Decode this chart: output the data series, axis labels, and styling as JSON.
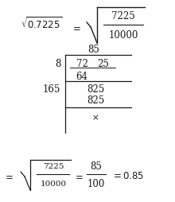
{
  "bg_color": "#ffffff",
  "fig_width": 2.2,
  "fig_height": 2.55,
  "dpi": 100,
  "text_color": "#1a1a1a",
  "line_color": "#1a1a1a",
  "font_size": 8.5,
  "font_size_small": 7.5
}
